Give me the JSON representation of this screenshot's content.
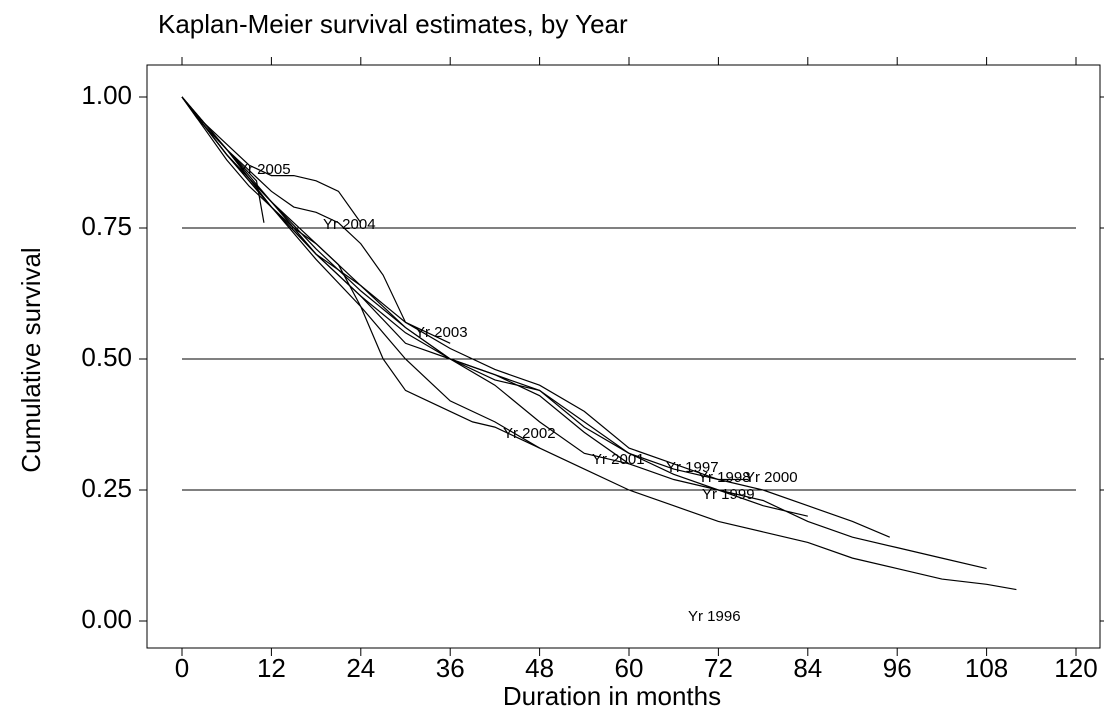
{
  "chart_data": {
    "type": "step",
    "title": "Kaplan-Meier survival estimates, by Year",
    "xlabel": "Duration in months",
    "ylabel": "Cumulative survival",
    "xlim": [
      0,
      120
    ],
    "ylim": [
      0,
      1
    ],
    "xticks": [
      0,
      12,
      24,
      36,
      48,
      60,
      72,
      84,
      96,
      108,
      120
    ],
    "yticks": [
      {
        "value": 0,
        "label": "0.00"
      },
      {
        "value": 0.25,
        "label": "0.25"
      },
      {
        "value": 0.5,
        "label": "0.50"
      },
      {
        "value": 0.75,
        "label": "0.75"
      },
      {
        "value": 1,
        "label": "1.00"
      }
    ],
    "grid": true,
    "color": "#000000",
    "series": [
      {
        "name": "Yr 1996",
        "x": [
          0,
          6,
          12,
          18,
          24,
          30,
          36,
          42,
          48,
          54,
          60,
          66,
          72,
          78,
          84,
          90,
          96,
          102,
          108,
          112
        ],
        "values": [
          1,
          0.9,
          0.79,
          0.69,
          0.6,
          0.5,
          0.42,
          0.38,
          0.33,
          0.29,
          0.25,
          0.22,
          0.19,
          0.17,
          0.15,
          0.12,
          0.1,
          0.08,
          0.07,
          0.06
        ]
      },
      {
        "name": "Yr 1997",
        "x": [
          0,
          6,
          12,
          18,
          24,
          30,
          36,
          42,
          48,
          54,
          60,
          66,
          72,
          78,
          84,
          90,
          96,
          102,
          108
        ],
        "values": [
          1,
          0.89,
          0.8,
          0.7,
          0.62,
          0.53,
          0.5,
          0.47,
          0.43,
          0.36,
          0.3,
          0.27,
          0.25,
          0.23,
          0.19,
          0.16,
          0.14,
          0.12,
          0.1
        ]
      },
      {
        "name": "Yr 1998",
        "x": [
          0,
          6,
          12,
          18,
          24,
          30,
          36,
          42,
          48,
          54,
          60,
          66,
          72,
          78,
          84,
          90,
          95
        ],
        "values": [
          1,
          0.9,
          0.8,
          0.72,
          0.64,
          0.57,
          0.52,
          0.48,
          0.45,
          0.4,
          0.33,
          0.3,
          0.27,
          0.25,
          0.22,
          0.19,
          0.16
        ]
      },
      {
        "name": "Yr 1999",
        "x": [
          0,
          6,
          12,
          18,
          24,
          30,
          36,
          42,
          48,
          54,
          60,
          66,
          72,
          78,
          84
        ],
        "values": [
          1,
          0.89,
          0.79,
          0.7,
          0.62,
          0.55,
          0.5,
          0.47,
          0.44,
          0.37,
          0.32,
          0.28,
          0.25,
          0.22,
          0.2
        ]
      },
      {
        "name": "Yr 2000",
        "x": [
          0,
          6,
          12,
          18,
          24,
          30,
          36,
          42,
          48,
          54,
          60,
          66,
          72,
          76
        ],
        "values": [
          1,
          0.89,
          0.8,
          0.71,
          0.63,
          0.56,
          0.5,
          0.46,
          0.44,
          0.38,
          0.32,
          0.29,
          0.27,
          0.27
        ]
      },
      {
        "name": "Yr 2001",
        "x": [
          0,
          6,
          12,
          18,
          24,
          30,
          36,
          42,
          48,
          54,
          60
        ],
        "values": [
          1,
          0.89,
          0.79,
          0.7,
          0.64,
          0.56,
          0.5,
          0.45,
          0.38,
          0.32,
          0.3
        ]
      },
      {
        "name": "Yr 2002",
        "x": [
          0,
          3,
          6,
          9,
          12,
          15,
          18,
          21,
          24,
          27,
          30,
          33,
          36,
          39,
          42,
          45,
          48
        ],
        "values": [
          1,
          0.94,
          0.88,
          0.83,
          0.79,
          0.75,
          0.72,
          0.68,
          0.6,
          0.5,
          0.44,
          0.42,
          0.4,
          0.38,
          0.37,
          0.35,
          0.33
        ]
      },
      {
        "name": "Yr 2003",
        "x": [
          0,
          3,
          6,
          9,
          12,
          15,
          18,
          21,
          24,
          27,
          30,
          33,
          36
        ],
        "values": [
          1,
          0.95,
          0.9,
          0.86,
          0.82,
          0.79,
          0.78,
          0.76,
          0.72,
          0.66,
          0.57,
          0.55,
          0.53
        ]
      },
      {
        "name": "Yr 2004",
        "x": [
          0,
          3,
          6,
          9,
          12,
          15,
          18,
          21,
          24
        ],
        "values": [
          1,
          0.95,
          0.91,
          0.87,
          0.85,
          0.85,
          0.84,
          0.82,
          0.76
        ]
      },
      {
        "name": "Yr 2005",
        "x": [
          0,
          2,
          4,
          6,
          8,
          10,
          11
        ],
        "values": [
          1,
          0.96,
          0.93,
          0.9,
          0.87,
          0.84,
          0.76
        ]
      }
    ]
  }
}
